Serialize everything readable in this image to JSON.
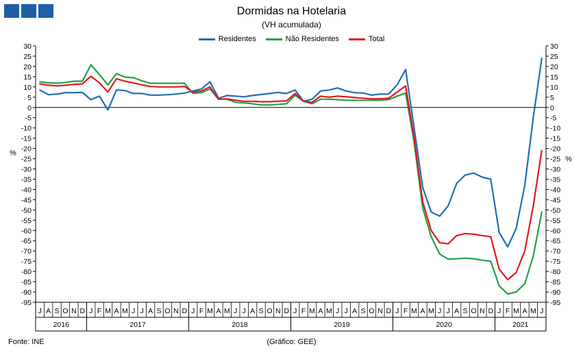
{
  "header": {
    "title": "Dormidas na Hotelaria",
    "subtitle": "(VH acumulada)"
  },
  "footer": {
    "source": "Fonte: INE",
    "credit": "(Gráfico: GEE)"
  },
  "colors": {
    "residentes": "#1f6db5",
    "nao_residentes": "#22a045",
    "total": "#e3161b",
    "logo": "#1f5fa8"
  },
  "chart_data": {
    "type": "line",
    "title": "Dormidas na Hotelaria",
    "subtitle": "(VH acumulada)",
    "ylabel_left": "%",
    "ylabel_right": "%",
    "ylim": [
      -95,
      30
    ],
    "yticks": [
      30,
      25,
      20,
      15,
      10,
      5,
      0,
      -5,
      -10,
      -15,
      -20,
      -25,
      -30,
      -35,
      -40,
      -45,
      -50,
      -55,
      -60,
      -65,
      -70,
      -75,
      -80,
      -85,
      -90,
      -95
    ],
    "legend_position": "top-center",
    "x": [
      "J",
      "A",
      "S",
      "O",
      "N",
      "D",
      "J",
      "F",
      "M",
      "A",
      "M",
      "J",
      "J",
      "A",
      "S",
      "O",
      "N",
      "D",
      "J",
      "F",
      "M",
      "A",
      "M",
      "J",
      "J",
      "A",
      "S",
      "O",
      "N",
      "D",
      "J",
      "F",
      "M",
      "A",
      "M",
      "J",
      "J",
      "A",
      "S",
      "O",
      "N",
      "D",
      "J",
      "F",
      "M",
      "A",
      "M",
      "J",
      "J",
      "A",
      "S",
      "O",
      "N",
      "D",
      "J",
      "F",
      "M",
      "A",
      "M",
      "J"
    ],
    "years": [
      {
        "label": "2016",
        "count": 6
      },
      {
        "label": "2017",
        "count": 12
      },
      {
        "label": "2018",
        "count": 12
      },
      {
        "label": "2019",
        "count": 12
      },
      {
        "label": "2020",
        "count": 12
      },
      {
        "label": "2021",
        "count": 6
      }
    ],
    "series": [
      {
        "name": "Residentes",
        "key": "residentes",
        "values": [
          8.5,
          6.2,
          6.5,
          7.2,
          7.2,
          7.3,
          3.8,
          5.5,
          -1.2,
          8.5,
          8.2,
          6.8,
          6.8,
          6.0,
          6.0,
          6.2,
          6.5,
          7.0,
          8.0,
          9.0,
          12.5,
          4.5,
          5.8,
          5.5,
          5.2,
          5.8,
          6.3,
          6.8,
          7.3,
          6.8,
          8.5,
          3.0,
          4.0,
          8.0,
          8.5,
          9.5,
          8.0,
          7.2,
          7.0,
          6.0,
          6.5,
          6.5,
          11.0,
          18.5,
          -10.0,
          -39.0,
          -51.0,
          -53.0,
          -48.0,
          -37.0,
          -33.0,
          -32.0,
          -34.0,
          -35.0,
          -61.0,
          -68.0,
          -59.0,
          -38.0,
          -5.0,
          24.0
        ]
      },
      {
        "name": "Não Residentes",
        "key": "nao_residentes",
        "values": [
          12.5,
          12.0,
          11.8,
          12.2,
          12.8,
          12.8,
          20.8,
          16.0,
          11.0,
          16.5,
          14.8,
          14.5,
          13.0,
          11.8,
          11.8,
          11.8,
          11.8,
          11.8,
          6.8,
          7.2,
          9.0,
          4.0,
          4.0,
          2.5,
          2.2,
          1.8,
          1.2,
          1.2,
          1.5,
          1.8,
          6.0,
          3.0,
          1.8,
          4.0,
          4.0,
          3.8,
          3.5,
          3.5,
          3.5,
          3.5,
          3.5,
          3.8,
          5.5,
          7.0,
          -17.0,
          -49.0,
          -63.0,
          -71.5,
          -74.0,
          -73.8,
          -73.5,
          -73.8,
          -74.5,
          -75.0,
          -87.0,
          -91.0,
          -90.0,
          -86.0,
          -72.5,
          -51.0
        ]
      },
      {
        "name": "Total",
        "key": "total",
        "values": [
          11.5,
          10.8,
          10.5,
          10.8,
          11.2,
          11.5,
          15.2,
          12.0,
          7.5,
          14.0,
          12.8,
          12.0,
          11.0,
          10.2,
          10.0,
          10.0,
          10.0,
          10.2,
          7.5,
          8.0,
          10.0,
          4.0,
          4.2,
          3.5,
          3.0,
          3.0,
          2.8,
          2.8,
          3.0,
          3.2,
          6.8,
          3.0,
          2.5,
          5.5,
          5.0,
          5.5,
          5.2,
          4.8,
          4.5,
          4.2,
          4.2,
          4.5,
          7.5,
          10.5,
          -15.0,
          -46.0,
          -60.0,
          -66.0,
          -66.5,
          -62.5,
          -61.5,
          -61.8,
          -62.5,
          -63.0,
          -79.0,
          -84.0,
          -80.5,
          -70.0,
          -48.0,
          -21.0
        ]
      }
    ]
  }
}
